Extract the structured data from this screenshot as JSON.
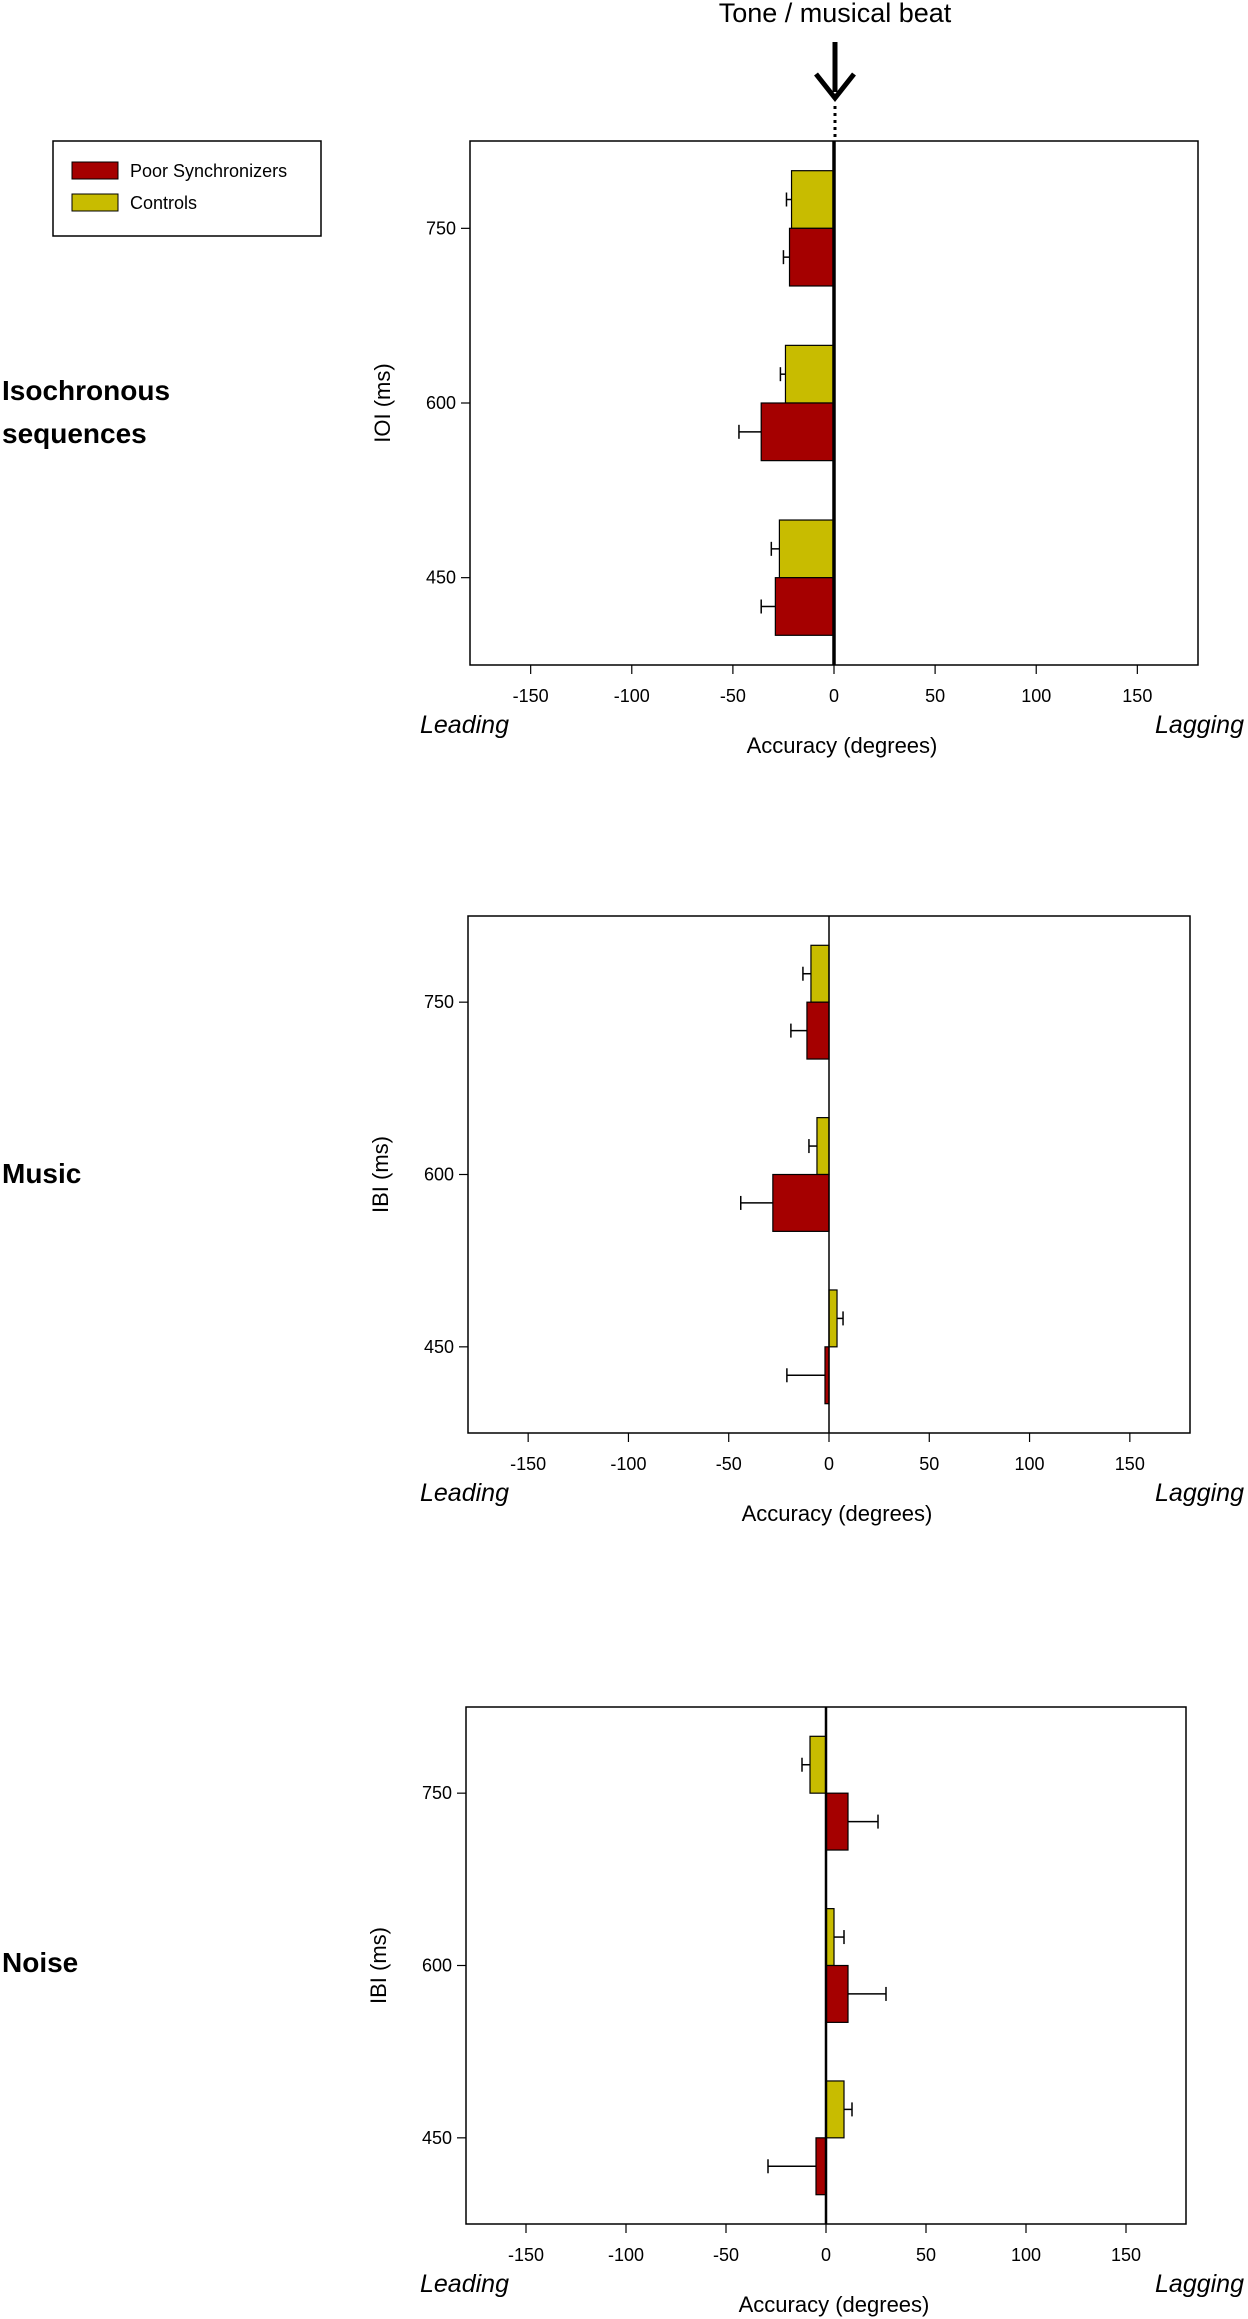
{
  "header": {
    "label": "Tone / musical beat"
  },
  "legend": {
    "position": "top-left",
    "items": [
      {
        "name": "Poor Synchronizers",
        "color": "#a50000"
      },
      {
        "name": "Controls",
        "color": "#c8bc00"
      }
    ]
  },
  "direction_labels": {
    "left": "Leading",
    "right": "Lagging"
  },
  "chart_data": [
    {
      "type": "bar",
      "orientation": "horizontal",
      "section_label": [
        "Isochronous",
        "sequences"
      ],
      "ylabel": "IOI (ms)",
      "xlabel": "Accuracy (degrees)",
      "xlim": [
        -180,
        180
      ],
      "xticks": [
        -150,
        -100,
        -50,
        0,
        50,
        100,
        150
      ],
      "categories": [
        "750",
        "600",
        "450"
      ],
      "series": [
        {
          "name": "Controls",
          "values": [
            -21,
            -24,
            -27
          ],
          "errors": [
            2.5,
            2.5,
            4
          ]
        },
        {
          "name": "Poor Synchronizers",
          "values": [
            -22,
            -36,
            -29
          ],
          "errors": [
            3,
            11,
            7
          ]
        }
      ]
    },
    {
      "type": "bar",
      "orientation": "horizontal",
      "section_label": [
        "Music"
      ],
      "ylabel": "IBI (ms)",
      "xlabel": "Accuracy (degrees)",
      "xlim": [
        -180,
        180
      ],
      "xticks": [
        -150,
        -100,
        -50,
        0,
        50,
        100,
        150
      ],
      "categories": [
        "750",
        "600",
        "450"
      ],
      "series": [
        {
          "name": "Controls",
          "values": [
            -9,
            -6,
            4
          ],
          "errors": [
            4,
            4,
            3
          ]
        },
        {
          "name": "Poor Synchronizers",
          "values": [
            -11,
            -28,
            -2
          ],
          "errors": [
            8,
            16,
            19
          ]
        }
      ]
    },
    {
      "type": "bar",
      "orientation": "horizontal",
      "section_label": [
        "Noise"
      ],
      "ylabel": "IBI (ms)",
      "xlabel": "Accuracy (degrees)",
      "xlim": [
        -180,
        180
      ],
      "xticks": [
        -150,
        -100,
        -50,
        0,
        50,
        100,
        150
      ],
      "categories": [
        "750",
        "600",
        "450"
      ],
      "series": [
        {
          "name": "Controls",
          "values": [
            -8,
            4,
            9
          ],
          "errors": [
            4,
            5,
            4
          ]
        },
        {
          "name": "Poor Synchronizers",
          "values": [
            11,
            11,
            -5
          ],
          "errors": [
            15,
            19,
            24
          ]
        }
      ]
    }
  ]
}
